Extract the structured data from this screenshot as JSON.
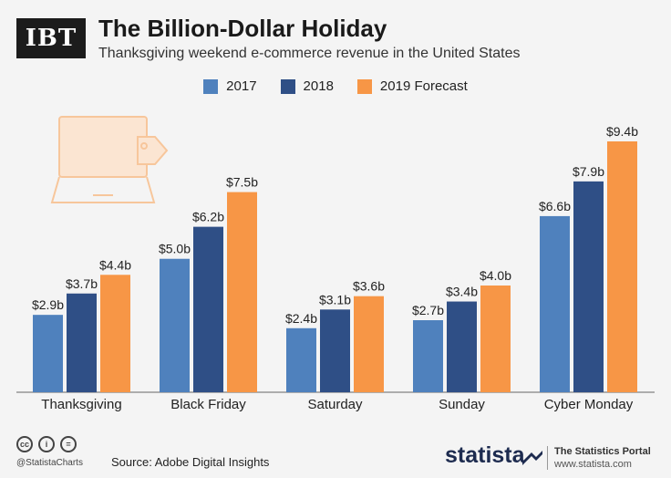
{
  "header": {
    "logo": "IBT",
    "title": "The Billion-Dollar Holiday",
    "subtitle": "Thanksgiving weekend e-commerce revenue in the United States"
  },
  "colors": {
    "s2017": "#4f81bd",
    "s2018": "#2f4f86",
    "s2019": "#f79646",
    "axis": "#666666",
    "icon": "#f7c69b"
  },
  "chart_data": {
    "type": "bar",
    "title": "The Billion-Dollar Holiday",
    "xlabel": "",
    "ylabel": "",
    "ylim": [
      0,
      10
    ],
    "grid": false,
    "legend_position": "top-center",
    "categories": [
      "Thanksgiving",
      "Black Friday",
      "Saturday",
      "Sunday",
      "Cyber Monday"
    ],
    "series": [
      {
        "name": "2017",
        "values": [
          2.9,
          5.0,
          2.4,
          2.7,
          6.6
        ],
        "labels": [
          "$2.9b",
          "$5.0b",
          "$2.4b",
          "$2.7b",
          "$6.6b"
        ]
      },
      {
        "name": "2018",
        "values": [
          3.7,
          6.2,
          3.1,
          3.4,
          7.9
        ],
        "labels": [
          "$3.7b",
          "$6.2b",
          "$3.1b",
          "$3.4b",
          "$7.9b"
        ]
      },
      {
        "name": "2019 Forecast",
        "values": [
          4.4,
          7.5,
          3.6,
          4.0,
          9.4
        ],
        "labels": [
          "$4.4b",
          "$7.5b",
          "$3.6b",
          "$4.0b",
          "$9.4b"
        ]
      }
    ]
  },
  "footer": {
    "cc_icons": [
      "cc",
      "i",
      "="
    ],
    "handle": "@StatistaCharts",
    "source": "Source: Adobe Digital Insights",
    "brand": "statista",
    "portal_title": "The Statistics Portal",
    "portal_url": "www.statista.com"
  }
}
